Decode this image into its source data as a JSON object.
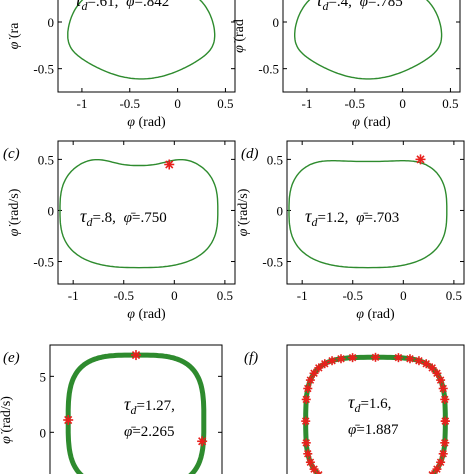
{
  "figure": {
    "panels": [
      {
        "id": "a",
        "label": "",
        "show_label": false,
        "tau_value": ".61",
        "phibar_value": ".842",
        "xlim": [
          -1.25,
          0.6
        ],
        "ylim": [
          -0.75,
          0.45
        ],
        "xticks": [
          -1,
          -0.5,
          0,
          0.5
        ],
        "xtick_labels": [
          "-1",
          "-0.5",
          "0",
          "0.5"
        ],
        "yticks": [
          -0.5,
          0
        ],
        "ytick_labels": [
          "-0.5",
          "0"
        ],
        "xlabel": "φ (rad)",
        "ylabel": "(ra",
        "show_ylabel_dot": true,
        "line_width": 1.4,
        "orbit": "a",
        "markers": []
      },
      {
        "id": "b",
        "label": "",
        "show_label": false,
        "tau_value": ".4",
        "phibar_value": ".785",
        "xlim": [
          -1.25,
          0.6
        ],
        "ylim": [
          -0.75,
          0.45
        ],
        "xticks": [
          -1,
          -0.5,
          0,
          0.5
        ],
        "xtick_labels": [
          "-1",
          "-0.5",
          "0",
          "0.5"
        ],
        "yticks": [
          -0.5,
          0
        ],
        "ytick_labels": [
          "-0.5",
          "0"
        ],
        "xlabel": "φ (rad)",
        "ylabel": "(rad",
        "show_ylabel_dot": true,
        "line_width": 1.4,
        "orbit": "b",
        "markers": []
      },
      {
        "id": "c",
        "label": "(c)",
        "show_label": true,
        "tau_value": ".8",
        "phibar_value": ".750",
        "xlim": [
          -1.15,
          0.6
        ],
        "ylim": [
          -0.72,
          0.68
        ],
        "xticks": [
          -1,
          -0.5,
          0,
          0.5
        ],
        "xtick_labels": [
          "-1",
          "-0.5",
          "0",
          "0.5"
        ],
        "yticks": [
          -0.5,
          0,
          0.5
        ],
        "ytick_labels": [
          "-0.5",
          "0",
          "0.5"
        ],
        "xlabel": "φ (rad)",
        "ylabel": "(rad/s)",
        "show_ylabel_dot": true,
        "line_width": 1.4,
        "orbit": "c",
        "markers": [
          [
            -0.05,
            0.45
          ]
        ]
      },
      {
        "id": "d",
        "label": "(d)",
        "show_label": true,
        "tau_value": "1.2",
        "phibar_value": ".703",
        "xlim": [
          -1.15,
          0.6
        ],
        "ylim": [
          -0.72,
          0.68
        ],
        "xticks": [
          -1,
          -0.5,
          0,
          0.5
        ],
        "xtick_labels": [
          "-1",
          "-0.5",
          "0",
          "0.5"
        ],
        "yticks": [
          -0.5,
          0,
          0.5
        ],
        "ytick_labels": [
          "-0.5",
          "0",
          "0.5"
        ],
        "xlabel": "φ (rad)",
        "ylabel": "(rad/s)",
        "show_ylabel_dot": true,
        "line_width": 1.4,
        "orbit": "d",
        "markers": [
          [
            0.17,
            0.5
          ]
        ]
      },
      {
        "id": "e",
        "label": "(e)",
        "show_label": true,
        "tau_value": "1.27",
        "phibar_value": "2.265",
        "xlim": [
          -2.6,
          2.6
        ],
        "ylim": [
          -5.6,
          7.8
        ],
        "xticks": [],
        "xtick_labels": [],
        "yticks": [
          0,
          5
        ],
        "ytick_labels": [
          "0",
          "5"
        ],
        "xlabel": "",
        "ylabel": "(rad/s)",
        "show_ylabel_dot": true,
        "line_width": 5,
        "orbit": "e",
        "markers": [
          [
            0.0,
            6.9
          ],
          [
            -2.05,
            1.1
          ],
          [
            2.0,
            -0.8
          ]
        ]
      },
      {
        "id": "f",
        "label": "(f)",
        "show_label": true,
        "tau_value": "1.6",
        "phibar_value": "1.887",
        "xlim": [
          -2.6,
          2.6
        ],
        "ylim": [
          -5.6,
          7.8
        ],
        "xticks": [],
        "xtick_labels": [],
        "yticks": [],
        "ytick_labels": [],
        "xlabel": "",
        "ylabel": "",
        "show_ylabel_dot": false,
        "line_width": 5,
        "orbit": "f",
        "markers": "dense"
      }
    ],
    "colors": {
      "orbit": "#2e8b2e",
      "marker": "#e8201c",
      "axis": "#000000"
    }
  }
}
